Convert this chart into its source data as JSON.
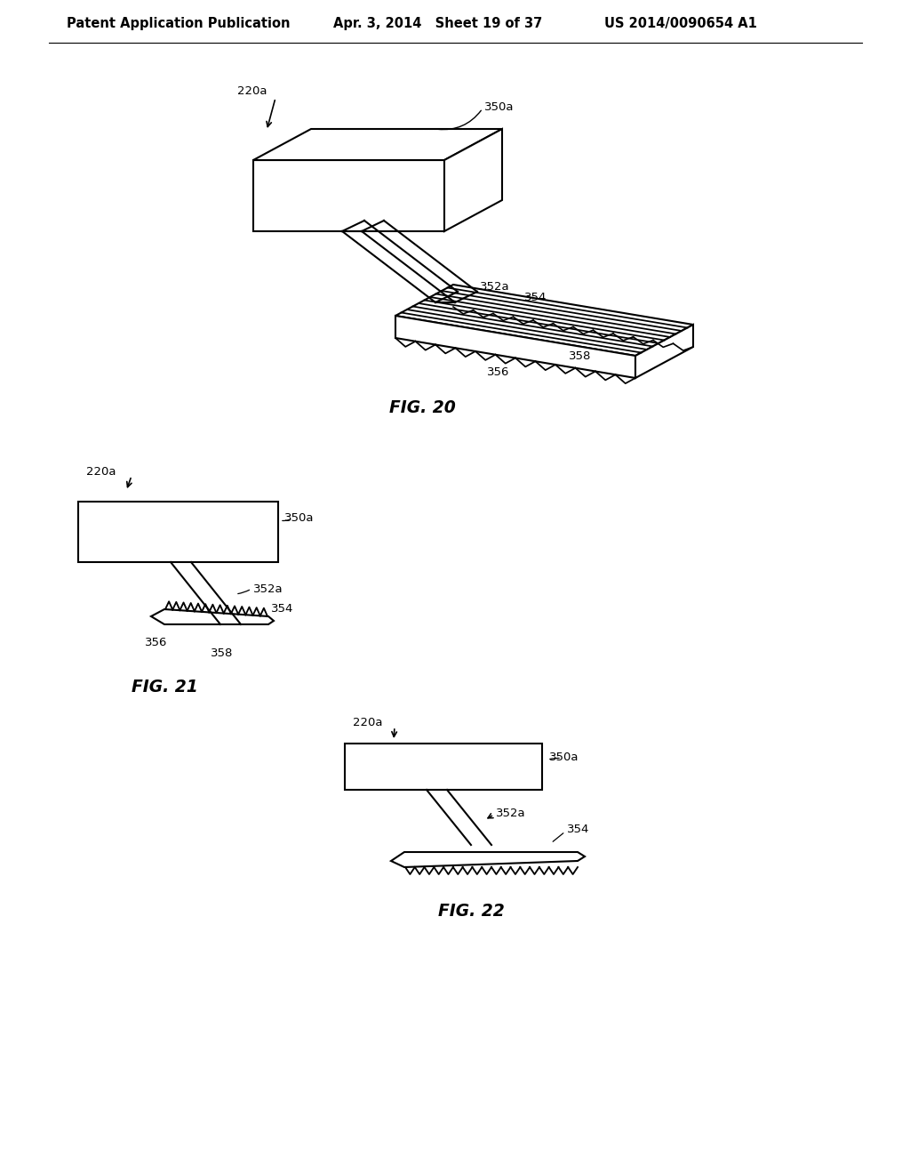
{
  "bg_color": "#ffffff",
  "header_left": "Patent Application Publication",
  "header_mid": "Apr. 3, 2014   Sheet 19 of 37",
  "header_right": "US 2014/0090654 A1",
  "fig20_label": "FIG. 20",
  "fig21_label": "FIG. 21",
  "fig22_label": "FIG. 22",
  "lc": "#000000",
  "lw": 1.5,
  "fs_header": 10.5,
  "fs_label": 9.5,
  "fs_fig": 13.5
}
